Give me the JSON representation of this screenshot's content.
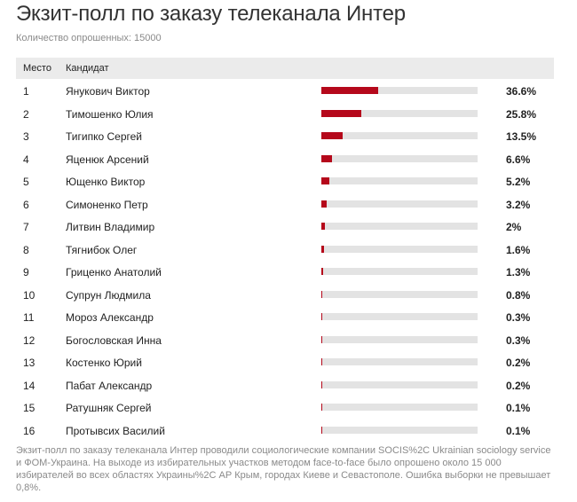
{
  "header": {
    "title": "Экзит-полл по заказу телеканала  Интер",
    "subtitle": "Количество опрошенных: 15000"
  },
  "table": {
    "col_place": "Место",
    "col_candidate": "Кандидат"
  },
  "colors": {
    "bar_fill": "#b5081b",
    "bar_track": "#e3e3e3",
    "header_bg": "#ebebeb"
  },
  "chart_data": {
    "type": "bar",
    "orientation": "horizontal",
    "title": "Экзит-полл по заказу телеканала  Интер",
    "subtitle": "Количество опрошенных: 15000",
    "xlim": [
      0,
      100
    ],
    "grid": false,
    "places": [
      "1",
      "2",
      "3",
      "4",
      "5",
      "6",
      "7",
      "8",
      "9",
      "10",
      "11",
      "12",
      "13",
      "14",
      "15",
      "16"
    ],
    "categories": [
      "Янукович Виктор",
      "Тимошенко Юлия",
      "Тигипко Сергей",
      "Яценюк Арсений",
      "Ющенко Виктор",
      "Симоненко Петр",
      "Литвин Владимир",
      "Тягнибок Олег",
      "Гриценко Анатолий",
      "Супрун Людмила",
      "Мороз Александр",
      "Богословская Инна",
      "Костенко Юрий",
      "Пабат Александр",
      "Ратушняк Сергей",
      "Протывсих Василий"
    ],
    "values": [
      36.6,
      25.8,
      13.5,
      6.6,
      5.2,
      3.2,
      2,
      1.6,
      1.3,
      0.8,
      0.3,
      0.3,
      0.2,
      0.2,
      0.1,
      0.1
    ],
    "value_labels": [
      "36.6%",
      "25.8%",
      "13.5%",
      "6.6%",
      "5.2%",
      "3.2%",
      "2%",
      "1.6%",
      "1.3%",
      "0.8%",
      "0.3%",
      "0.3%",
      "0.2%",
      "0.2%",
      "0.1%",
      "0.1%"
    ]
  },
  "footnote": "Экзит-полл по заказу телеканала Интер проводили социологические компании SOCIS%2C Ukrainian sociology service и ФОМ-Украина. На выходе из избирательных участков методом face-to-face было опрошено около 15 000 избирателей во всех областях Украины%2C АР Крым, городах Киеве и Севастополе. Ошибка выборки не превышает 0,8%."
}
